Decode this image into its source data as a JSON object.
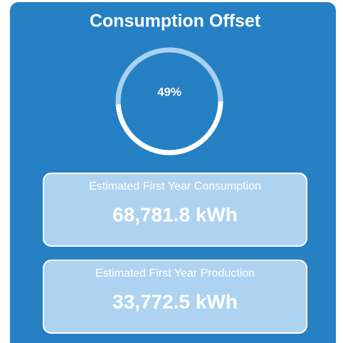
{
  "title": "Consumption Offset",
  "gauge": {
    "value": 49,
    "label": "49%"
  },
  "cards": [
    {
      "label": "Estimated First Year Consumption",
      "value": "68,781.8 kWh"
    },
    {
      "label": "Estimated First Year Production",
      "value": "33,772.5 kWh"
    }
  ]
}
